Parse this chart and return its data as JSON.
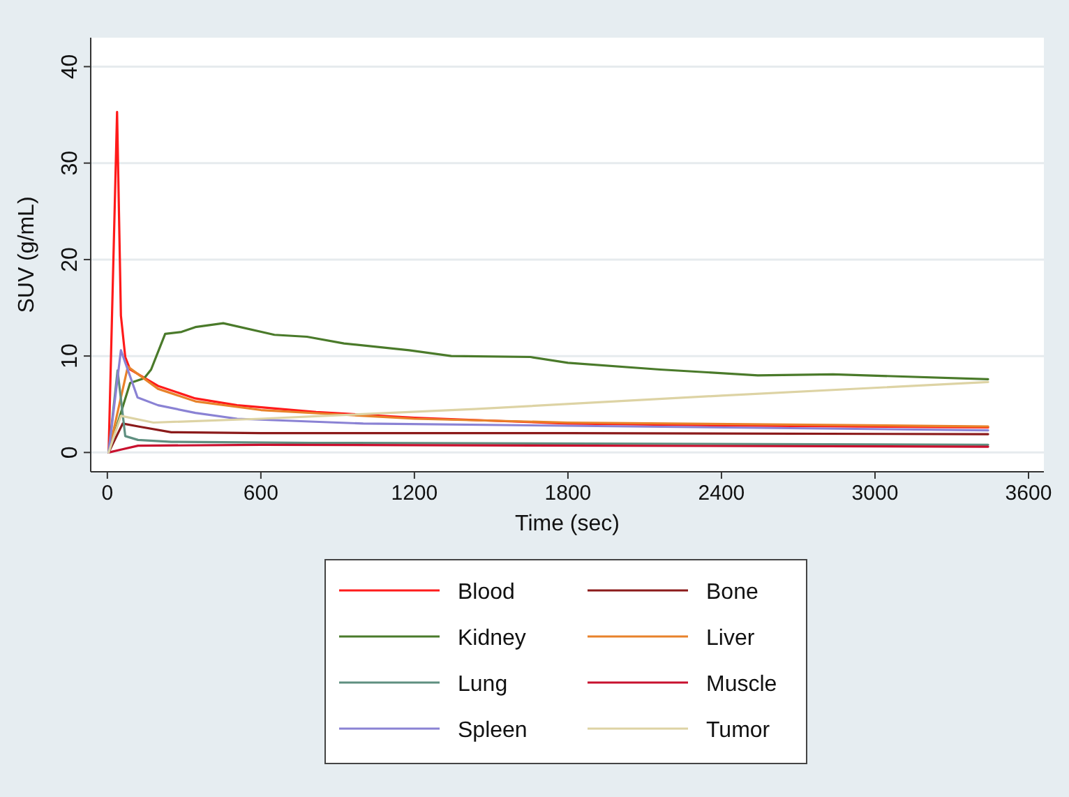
{
  "chart_data": {
    "type": "line",
    "xlabel": "Time (sec)",
    "ylabel": "SUV (g/mL)",
    "xlim": [
      -65,
      3660
    ],
    "ylim": [
      -2,
      43
    ],
    "xticks": [
      0,
      600,
      1200,
      1800,
      2400,
      3000,
      3600
    ],
    "yticks": [
      0,
      10,
      20,
      30,
      40
    ],
    "grid": "y",
    "legend": "bottom",
    "marker": "none",
    "line_style": "solid",
    "series": [
      {
        "name": "Blood",
        "color": "#ff1a1a",
        "x": [
          5,
          38,
          53,
          70,
          89,
          198,
          344,
          507,
          816,
          1200,
          1800,
          2400,
          3442
        ],
        "values": [
          0,
          35.3,
          14.2,
          9.9,
          8.6,
          6.9,
          5.6,
          4.9,
          4.2,
          3.6,
          3.0,
          2.8,
          2.6
        ]
      },
      {
        "name": "Bone",
        "color": "#8b1a1a",
        "x": [
          5,
          60,
          120,
          250,
          600,
          1800,
          3442
        ],
        "values": [
          0,
          3.0,
          2.7,
          2.1,
          2.0,
          2.0,
          1.9
        ]
      },
      {
        "name": "Kidney",
        "color": "#4a7a2a",
        "x": [
          5,
          89,
          144,
          171,
          226,
          290,
          344,
          453,
          653,
          780,
          925,
          1180,
          1344,
          1653,
          1800,
          2160,
          2542,
          2836,
          3442
        ],
        "values": [
          0,
          7.2,
          7.7,
          8.6,
          12.3,
          12.5,
          13.0,
          13.4,
          12.2,
          12.0,
          11.3,
          10.6,
          10.0,
          9.9,
          9.3,
          8.6,
          8.0,
          8.1,
          7.6
        ]
      },
      {
        "name": "Liver",
        "color": "#e8822a",
        "x": [
          5,
          80,
          198,
          344,
          600,
          1200,
          1800,
          3442
        ],
        "values": [
          0,
          8.9,
          6.6,
          5.3,
          4.4,
          3.5,
          3.1,
          2.7
        ]
      },
      {
        "name": "Lung",
        "color": "#5f8f80",
        "x": [
          5,
          40,
          70,
          120,
          250,
          800,
          3442
        ],
        "values": [
          0,
          8.5,
          1.7,
          1.3,
          1.1,
          1.0,
          0.8
        ]
      },
      {
        "name": "Muscle",
        "color": "#c8102e",
        "x": [
          5,
          53,
          120,
          600,
          3442
        ],
        "values": [
          0,
          0.3,
          0.7,
          0.8,
          0.6
        ]
      },
      {
        "name": "Spleen",
        "color": "#8a82d4",
        "x": [
          5,
          53,
          118,
          198,
          344,
          507,
          1000,
          3442
        ],
        "values": [
          0,
          10.6,
          5.7,
          4.9,
          4.1,
          3.5,
          3.0,
          2.3
        ]
      },
      {
        "name": "Tumor",
        "color": "#ddd3a4",
        "x": [
          5,
          53,
          180,
          600,
          1435,
          2400,
          3442
        ],
        "values": [
          0,
          3.8,
          3.1,
          3.5,
          4.5,
          5.9,
          7.3
        ]
      }
    ]
  }
}
